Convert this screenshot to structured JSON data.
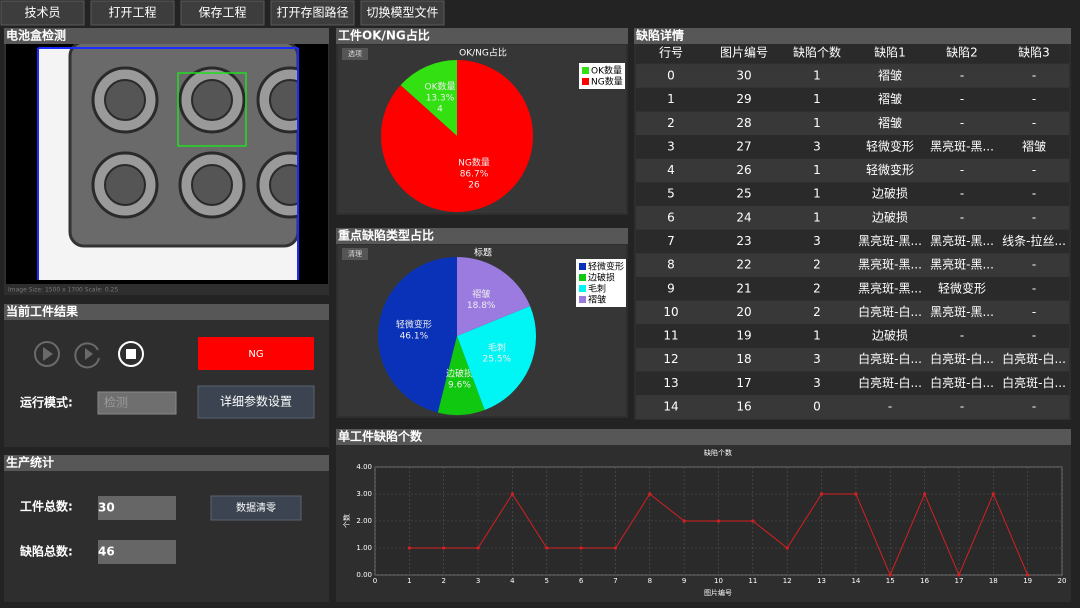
{
  "toolbar": [
    "技术员",
    "打开工程",
    "保存工程",
    "打开存图路径",
    "切换模型文件"
  ],
  "image_panel": {
    "title": "电池盒检测",
    "image_info": "Image Size: 1500 x 1700 Scale: 0.25"
  },
  "result_panel": {
    "title": "当前工件结果",
    "result": "NG",
    "mode_label": "运行模式:",
    "mode_value": "检测",
    "settings_button": "详细参数设置"
  },
  "stats_panel": {
    "title": "生产统计",
    "total_label": "工件总数:",
    "total_value": 30,
    "defect_label": "缺陷总数:",
    "defect_value": 46,
    "clear_button": "数据清零"
  },
  "ok_ng_panel": {
    "title": "工件OK/NG占比",
    "button": "选项",
    "chart": {
      "type": "pie",
      "title": "OK/NG占比",
      "categories": [
        "OK数量",
        "NG数量"
      ],
      "values": [
        4,
        26
      ],
      "percent_labels": [
        "13.3%",
        "86.7%"
      ],
      "colors": [
        "#33e011",
        "#ff0000"
      ]
    }
  },
  "defect_type_panel": {
    "title": "重点缺陷类型占比",
    "button": "清理",
    "chart": {
      "type": "pie",
      "title": "标题",
      "categories": [
        "轻微变形",
        "边破损",
        "毛刺",
        "褶皱"
      ],
      "values": [
        46.1,
        9.6,
        25.5,
        18.8
      ],
      "value_labels": [
        "46.1%",
        "9.6%",
        "25.5%",
        "18.8%"
      ],
      "colors": [
        "#0a32b8",
        "#10c810",
        "#00f5f5",
        "#9b7be0"
      ]
    }
  },
  "detail_panel": {
    "title": "缺陷详情",
    "table": {
      "columns": [
        "行号",
        "图片编号",
        "缺陷个数",
        "缺陷1",
        "缺陷2",
        "缺陷3"
      ],
      "rows": [
        [
          0,
          30,
          1,
          "褶皱",
          "-",
          "-"
        ],
        [
          1,
          29,
          1,
          "褶皱",
          "-",
          "-"
        ],
        [
          2,
          28,
          1,
          "褶皱",
          "-",
          "-"
        ],
        [
          3,
          27,
          3,
          "轻微变形",
          "黑亮斑-黑...",
          "褶皱"
        ],
        [
          4,
          26,
          1,
          "轻微变形",
          "-",
          "-"
        ],
        [
          5,
          25,
          1,
          "边破损",
          "-",
          "-"
        ],
        [
          6,
          24,
          1,
          "边破损",
          "-",
          "-"
        ],
        [
          7,
          23,
          3,
          "黑亮斑-黑...",
          "黑亮斑-黑...",
          "线条-拉丝..."
        ],
        [
          8,
          22,
          2,
          "黑亮斑-黑...",
          "黑亮斑-黑...",
          "-"
        ],
        [
          9,
          21,
          2,
          "黑亮斑-黑...",
          "轻微变形",
          "-"
        ],
        [
          10,
          20,
          2,
          "白亮斑-白...",
          "黑亮斑-黑...",
          "-"
        ],
        [
          11,
          19,
          1,
          "边破损",
          "-",
          "-"
        ],
        [
          12,
          18,
          3,
          "白亮斑-白...",
          "白亮斑-白...",
          "白亮斑-白..."
        ],
        [
          13,
          17,
          3,
          "白亮斑-白...",
          "白亮斑-白...",
          "白亮斑-白..."
        ],
        [
          14,
          16,
          0,
          "-",
          "-",
          "-"
        ]
      ]
    }
  },
  "count_panel": {
    "title": "单工件缺陷个数",
    "chart": {
      "type": "line",
      "title": "缺陷个数",
      "x_label": "图片编号",
      "y_label": "个数",
      "x": [
        1,
        2,
        3,
        4,
        5,
        6,
        7,
        8,
        9,
        10,
        11,
        12,
        13,
        14,
        15,
        16,
        17,
        18,
        19
      ],
      "series": [
        {
          "color": "#d42020",
          "values": [
            1,
            1,
            1,
            3,
            1,
            1,
            1,
            3,
            2,
            2,
            2,
            1,
            3,
            3,
            0,
            3,
            0,
            3,
            0
          ]
        }
      ],
      "xlim": [
        0,
        20
      ],
      "xticks": [
        0,
        1,
        2,
        3,
        4,
        5,
        6,
        7,
        8,
        9,
        10,
        11,
        12,
        13,
        14,
        15,
        16,
        17,
        18,
        19,
        20
      ],
      "ylim": [
        0,
        4
      ],
      "yticks": [
        {
          "value": 0,
          "label": "0.00"
        },
        {
          "value": 1,
          "label": "1.00"
        },
        {
          "value": 2,
          "label": "2.00"
        },
        {
          "value": 3,
          "label": "3.00"
        },
        {
          "value": 4,
          "label": "4.00"
        }
      ],
      "grid": true
    }
  }
}
